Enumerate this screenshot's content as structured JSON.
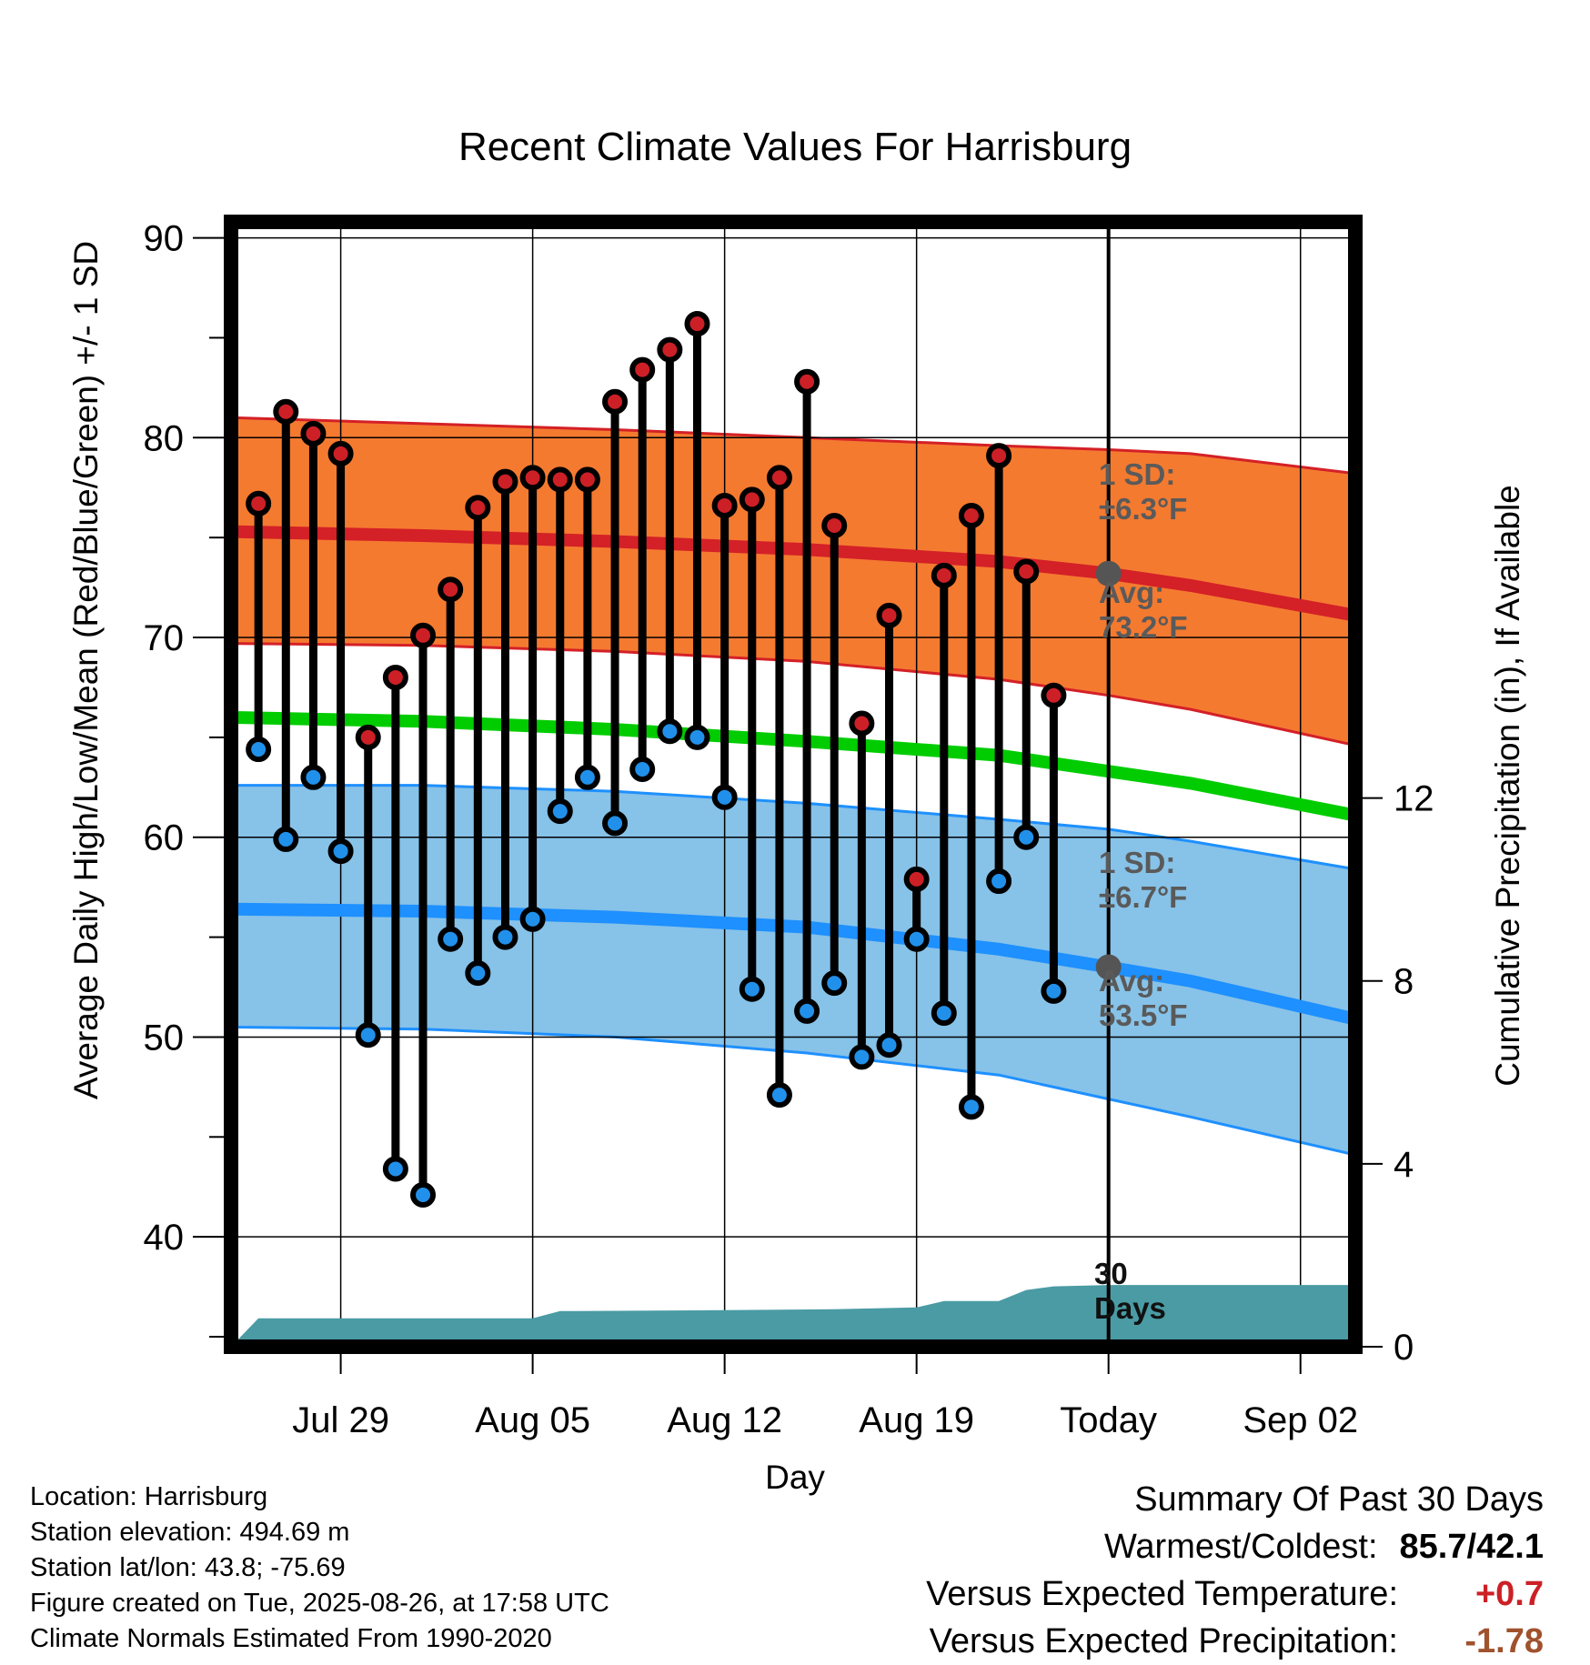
{
  "chart_data": {
    "type": "line",
    "title": "Recent Climate Values For Harrisburg",
    "xlabel": "Day",
    "ylabel": "Average Daily High/Low/Mean (Red/Blue/Green) +/- 1 SD",
    "y2label": "Cumulative Precipitation (in), If Available",
    "ylim": [
      34.5,
      90.8
    ],
    "y_ticks": [
      40,
      50,
      60,
      70,
      80,
      90
    ],
    "y2lim": [
      0,
      24.6
    ],
    "y2_ticks": [
      0,
      4,
      8,
      12
    ],
    "x_start_date": "2025-07-25",
    "x_end_date": "2025-09-04",
    "x_ticks": [
      {
        "date": "2025-07-29",
        "label": "Jul 29"
      },
      {
        "date": "2025-08-05",
        "label": "Aug 05"
      },
      {
        "date": "2025-08-12",
        "label": "Aug 12"
      },
      {
        "date": "2025-08-19",
        "label": "Aug 19"
      },
      {
        "date": "2025-08-26",
        "label": "Today"
      },
      {
        "date": "2025-09-02",
        "label": "Sep 02"
      }
    ],
    "today": "2025-08-26",
    "grid": true,
    "observed": {
      "dates": [
        "2025-07-26",
        "2025-07-27",
        "2025-07-28",
        "2025-07-29",
        "2025-07-30",
        "2025-07-31",
        "2025-08-01",
        "2025-08-02",
        "2025-08-03",
        "2025-08-04",
        "2025-08-05",
        "2025-08-06",
        "2025-08-07",
        "2025-08-08",
        "2025-08-09",
        "2025-08-10",
        "2025-08-11",
        "2025-08-12",
        "2025-08-13",
        "2025-08-14",
        "2025-08-15",
        "2025-08-16",
        "2025-08-17",
        "2025-08-18",
        "2025-08-19",
        "2025-08-20",
        "2025-08-21",
        "2025-08-22",
        "2025-08-23",
        "2025-08-24",
        "2025-08-25"
      ],
      "high": [
        76.7,
        81.3,
        80.2,
        79.2,
        65.0,
        68.0,
        70.1,
        72.4,
        76.5,
        77.8,
        78.0,
        77.9,
        77.9,
        81.8,
        83.4,
        84.4,
        85.7,
        76.6,
        76.9,
        78.0,
        82.8,
        75.6,
        65.7,
        71.1,
        57.9,
        73.1,
        76.1,
        79.1,
        73.3,
        67.1,
        null
      ],
      "low": [
        64.4,
        59.9,
        63.0,
        59.3,
        50.1,
        43.4,
        42.1,
        54.9,
        53.2,
        55.0,
        55.9,
        61.3,
        63.0,
        60.7,
        63.4,
        65.3,
        65.0,
        62.0,
        52.4,
        47.1,
        51.3,
        52.7,
        49.0,
        49.6,
        54.9,
        51.2,
        46.5,
        57.8,
        60.0,
        52.3,
        null
      ]
    },
    "normals": {
      "dates": [
        "2025-07-25",
        "2025-08-01",
        "2025-08-08",
        "2025-08-15",
        "2025-08-22",
        "2025-08-26",
        "2025-08-29",
        "2025-09-04"
      ],
      "high_mean": [
        75.3,
        75.1,
        74.8,
        74.4,
        73.8,
        73.2,
        72.6,
        71.1
      ],
      "high_sd_upper": [
        81.0,
        80.7,
        80.4,
        80.0,
        79.6,
        79.4,
        79.2,
        78.2
      ],
      "high_sd_lower": [
        69.7,
        69.6,
        69.3,
        68.8,
        67.9,
        67.1,
        66.4,
        64.6
      ],
      "mean": [
        66.0,
        65.8,
        65.4,
        64.8,
        64.1,
        63.3,
        62.7,
        61.1
      ],
      "low_mean": [
        56.4,
        56.3,
        56.0,
        55.5,
        54.4,
        53.5,
        52.8,
        50.9
      ],
      "low_sd_upper": [
        62.6,
        62.6,
        62.3,
        61.7,
        60.9,
        60.4,
        59.8,
        58.4
      ],
      "low_sd_lower": [
        50.5,
        50.4,
        50.0,
        49.2,
        48.1,
        46.9,
        46.0,
        44.1
      ]
    },
    "precip_cumulative": {
      "dates": [
        "2025-07-25",
        "2025-07-26",
        "2025-08-05",
        "2025-08-06",
        "2025-08-12",
        "2025-08-16",
        "2025-08-19",
        "2025-08-20",
        "2025-08-22",
        "2025-08-23",
        "2025-08-24",
        "2025-08-26",
        "2025-09-04"
      ],
      "values": [
        0.0,
        0.62,
        0.62,
        0.78,
        0.8,
        0.82,
        0.86,
        1.0,
        1.0,
        1.24,
        1.32,
        1.35,
        1.35
      ]
    },
    "annotations": {
      "high_sd": {
        "line1": "1 SD:",
        "line2": "±6.3°F"
      },
      "high_avg": {
        "line1": "Avg:",
        "line2": "73.2°F",
        "value": 73.2
      },
      "low_sd": {
        "line1": "1 SD:",
        "line2": "±6.7°F"
      },
      "low_avg": {
        "line1": "Avg:",
        "line2": "53.5°F",
        "value": 53.5
      },
      "precip_days": {
        "line1": "30",
        "line2": "Days"
      }
    },
    "colors": {
      "high_band": "#f47a30",
      "high_line": "#d42027",
      "low_band": "#87c2e8",
      "low_line": "#1e90ff",
      "mean_line": "#00cc00",
      "precip": "#4a9ba4",
      "high_marker": "#cc2026",
      "low_marker": "#2190ea",
      "today_marker": "#555555"
    }
  },
  "footer": {
    "location": "Location: Harrisburg",
    "elevation": "Station elevation: 494.69 m",
    "latlon": "Station lat/lon: 43.8; -75.69",
    "created": "Figure created on Tue, 2025-08-26, at 17:58 UTC",
    "normals": "Climate Normals Estimated From 1990-2020"
  },
  "summary": {
    "heading": "Summary Of Past 30 Days",
    "warm_cold_label": "Warmest/Coldest:",
    "warm_cold_value": "85.7/42.1",
    "temp_label": "Versus Expected Temperature:",
    "temp_value": "+0.7",
    "precip_label": "Versus Expected Precipitation:",
    "precip_value": "-1.78"
  }
}
